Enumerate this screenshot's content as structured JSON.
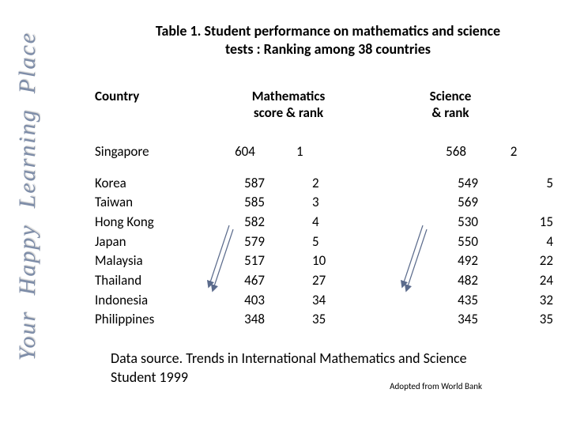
{
  "sidebar": {
    "w1": "Your",
    "w2": "Happy",
    "w3": "Learning",
    "w4": "Place"
  },
  "title": {
    "line1": "Table 1. Student performance on mathematics and science",
    "line2": "tests : Ranking among 38 countries"
  },
  "headers": {
    "country": "Country",
    "math_l1": "Mathematics",
    "math_l2": "score & rank",
    "sci_l1": "Science",
    "sci_l2": "& rank"
  },
  "top": {
    "country": "Singapore",
    "math_score": "604",
    "math_rank": "1",
    "sci_score": "568",
    "sci_rank": "2"
  },
  "rows": {
    "c0": "Korea",
    "ms0": "587",
    "mr0": "2",
    "ss0": "549",
    "sr0": "5",
    "c1": "Taiwan",
    "ms1": "585",
    "mr1": "3",
    "ss1": "569",
    "sr1": "",
    "c2": "Hong Kong",
    "ms2": "582",
    "mr2": "4",
    "ss2": "530",
    "sr2": "15",
    "c3": "Japan",
    "ms3": "579",
    "mr3": "5",
    "ss3": "550",
    "sr3": "4",
    "c4": "Malaysia",
    "ms4": "517",
    "mr4": "10",
    "ss4": "492",
    "sr4": "22",
    "c5": "Thailand",
    "ms5": "467",
    "mr5": "27",
    "ss5": "482",
    "sr5": "24",
    "c6": "Indonesia",
    "ms6": "403",
    "mr6": "34",
    "ss6": "435",
    "sr6": "32",
    "c7": "Philippines",
    "ms7": "348",
    "mr7": "35",
    "ss7": "345",
    "sr7": "35"
  },
  "footer": {
    "source_l1": "Data source. Trends in International Mathematics and Science",
    "source_l2": "Student 1999",
    "adopted": "Adopted from World Bank"
  },
  "style": {
    "arrow_color": "#5b6b8c",
    "vertical_color": "#7e8da8"
  }
}
